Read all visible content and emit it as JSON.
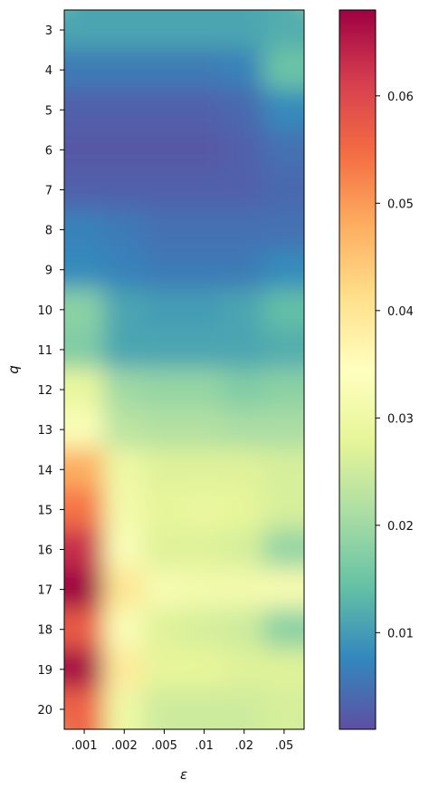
{
  "chart_data": {
    "type": "heatmap",
    "title": "",
    "xlabel": "ε",
    "ylabel": "q",
    "x_categories": [
      ".001",
      ".002",
      ".005",
      ".01",
      ".02",
      ".05"
    ],
    "y_categories": [
      "3",
      "4",
      "5",
      "6",
      "7",
      "8",
      "9",
      "10",
      "11",
      "12",
      "13",
      "14",
      "15",
      "16",
      "17",
      "18",
      "19",
      "20"
    ],
    "values": [
      [
        0.011,
        0.011,
        0.011,
        0.011,
        0.011,
        0.012
      ],
      [
        0.006,
        0.006,
        0.006,
        0.006,
        0.007,
        0.015
      ],
      [
        0.003,
        0.003,
        0.003,
        0.003,
        0.004,
        0.008
      ],
      [
        0.002,
        0.002,
        0.002,
        0.002,
        0.003,
        0.005
      ],
      [
        0.003,
        0.003,
        0.003,
        0.003,
        0.003,
        0.004
      ],
      [
        0.007,
        0.006,
        0.005,
        0.005,
        0.005,
        0.005
      ],
      [
        0.008,
        0.007,
        0.006,
        0.006,
        0.006,
        0.008
      ],
      [
        0.018,
        0.011,
        0.01,
        0.01,
        0.011,
        0.014
      ],
      [
        0.017,
        0.011,
        0.011,
        0.011,
        0.011,
        0.012
      ],
      [
        0.029,
        0.02,
        0.019,
        0.019,
        0.017,
        0.018
      ],
      [
        0.033,
        0.023,
        0.022,
        0.022,
        0.021,
        0.021
      ],
      [
        0.048,
        0.03,
        0.027,
        0.027,
        0.027,
        0.026
      ],
      [
        0.054,
        0.031,
        0.028,
        0.029,
        0.028,
        0.026
      ],
      [
        0.063,
        0.033,
        0.027,
        0.027,
        0.026,
        0.019
      ],
      [
        0.068,
        0.04,
        0.032,
        0.031,
        0.031,
        0.032
      ],
      [
        0.057,
        0.033,
        0.027,
        0.026,
        0.025,
        0.018
      ],
      [
        0.067,
        0.039,
        0.028,
        0.028,
        0.027,
        0.027
      ],
      [
        0.056,
        0.03,
        0.025,
        0.025,
        0.025,
        0.026
      ]
    ],
    "interpolation": "smooth",
    "colormap": "Spectral_r",
    "colorbar": {
      "range": [
        0.001,
        0.068
      ],
      "ticks": [
        0.01,
        0.02,
        0.03,
        0.04,
        0.05,
        0.06
      ],
      "tick_labels": [
        "0.01",
        "0.02",
        "0.03",
        "0.04",
        "0.05",
        "0.06"
      ]
    },
    "grid": false
  }
}
